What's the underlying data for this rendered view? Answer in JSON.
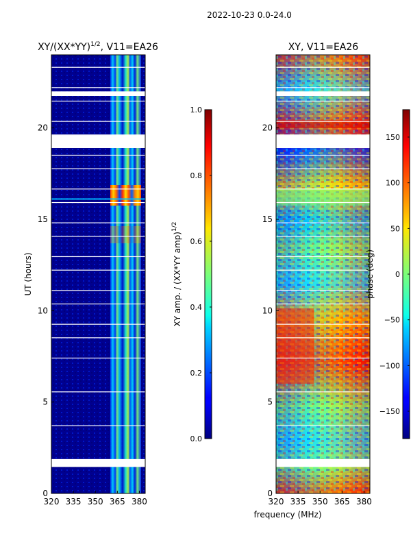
{
  "suptitle": "2022-10-23 0.0-24.0",
  "chart_data": [
    {
      "type": "heatmap",
      "title": "XY/(XX*YY)^1/2, V11=EA26",
      "title_main": "XY/(XX*YY)",
      "title_sup": "1/2",
      "title_tail": ", V11=EA26",
      "xlabel": "",
      "ylabel": "UT (hours)",
      "xlim": [
        320,
        384
      ],
      "ylim": [
        0,
        24
      ],
      "x_ticks": [
        "320",
        "335",
        "350",
        "365",
        "380"
      ],
      "x_tick_values": [
        320,
        335,
        350,
        365,
        380
      ],
      "y_ticks": [
        "0",
        "5",
        "10",
        "15",
        "20"
      ],
      "y_tick_values": [
        0,
        5,
        10,
        15,
        20
      ],
      "colorbar": {
        "label": "XY amp. / (XX*YY amp)^1/2",
        "label_main": "XY amp. / (XX*YY amp)",
        "label_sup": "1/2",
        "range": [
          0.0,
          1.0
        ],
        "ticks": [
          "0.0",
          "0.2",
          "0.4",
          "0.6",
          "0.8",
          "1.0"
        ],
        "tick_values": [
          0.0,
          0.2,
          0.4,
          0.6,
          0.8,
          1.0
        ]
      },
      "gaps_hours": [
        [
          1.45,
          1.85
        ],
        [
          18.9,
          19.6
        ],
        [
          21.75,
          22.0
        ]
      ]
    },
    {
      "type": "heatmap",
      "title": "XY, V11=EA26",
      "xlabel": "frequency (MHz)",
      "ylabel": "",
      "xlim": [
        320,
        384
      ],
      "ylim": [
        0,
        24
      ],
      "x_ticks": [
        "320",
        "335",
        "350",
        "365",
        "380"
      ],
      "x_tick_values": [
        320,
        335,
        350,
        365,
        380
      ],
      "y_ticks": [
        "0",
        "5",
        "10",
        "15",
        "20"
      ],
      "y_tick_values": [
        0,
        5,
        10,
        15,
        20
      ],
      "colorbar": {
        "label": "phase (deg)",
        "range": [
          -180,
          180
        ],
        "ticks": [
          "−150",
          "−100",
          "−50",
          "0",
          "50",
          "100",
          "150"
        ],
        "tick_values": [
          -150,
          -100,
          -50,
          0,
          50,
          100,
          150
        ]
      },
      "gaps_hours": [
        [
          1.45,
          1.85
        ],
        [
          18.9,
          19.6
        ],
        [
          21.75,
          22.0
        ]
      ]
    }
  ]
}
